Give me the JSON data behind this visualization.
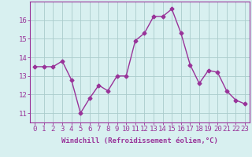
{
  "x": [
    0,
    1,
    2,
    3,
    4,
    5,
    6,
    7,
    8,
    9,
    10,
    11,
    12,
    13,
    14,
    15,
    16,
    17,
    18,
    19,
    20,
    21,
    22,
    23
  ],
  "y": [
    13.5,
    13.5,
    13.5,
    13.8,
    12.8,
    11.0,
    11.8,
    12.5,
    12.2,
    13.0,
    13.0,
    14.9,
    15.3,
    16.2,
    16.2,
    16.6,
    15.3,
    13.6,
    12.6,
    13.3,
    13.2,
    12.2,
    11.7,
    11.5
  ],
  "line_color": "#993399",
  "marker": "D",
  "marker_size": 2.5,
  "linewidth": 1.0,
  "bg_color": "#d8f0f0",
  "grid_color": "#aacccc",
  "xlabel": "Windchill (Refroidissement éolien,°C)",
  "xlabel_fontsize": 6.5,
  "xtick_labels": [
    "0",
    "1",
    "2",
    "3",
    "4",
    "5",
    "6",
    "7",
    "8",
    "9",
    "10",
    "11",
    "12",
    "13",
    "14",
    "15",
    "16",
    "17",
    "18",
    "19",
    "20",
    "21",
    "22",
    "23"
  ],
  "ytick_values": [
    11,
    12,
    13,
    14,
    15,
    16
  ],
  "ylim": [
    10.5,
    17.0
  ],
  "xlim": [
    -0.5,
    23.5
  ],
  "tick_fontsize": 6.5,
  "tick_color": "#993399",
  "axis_color": "#993399"
}
